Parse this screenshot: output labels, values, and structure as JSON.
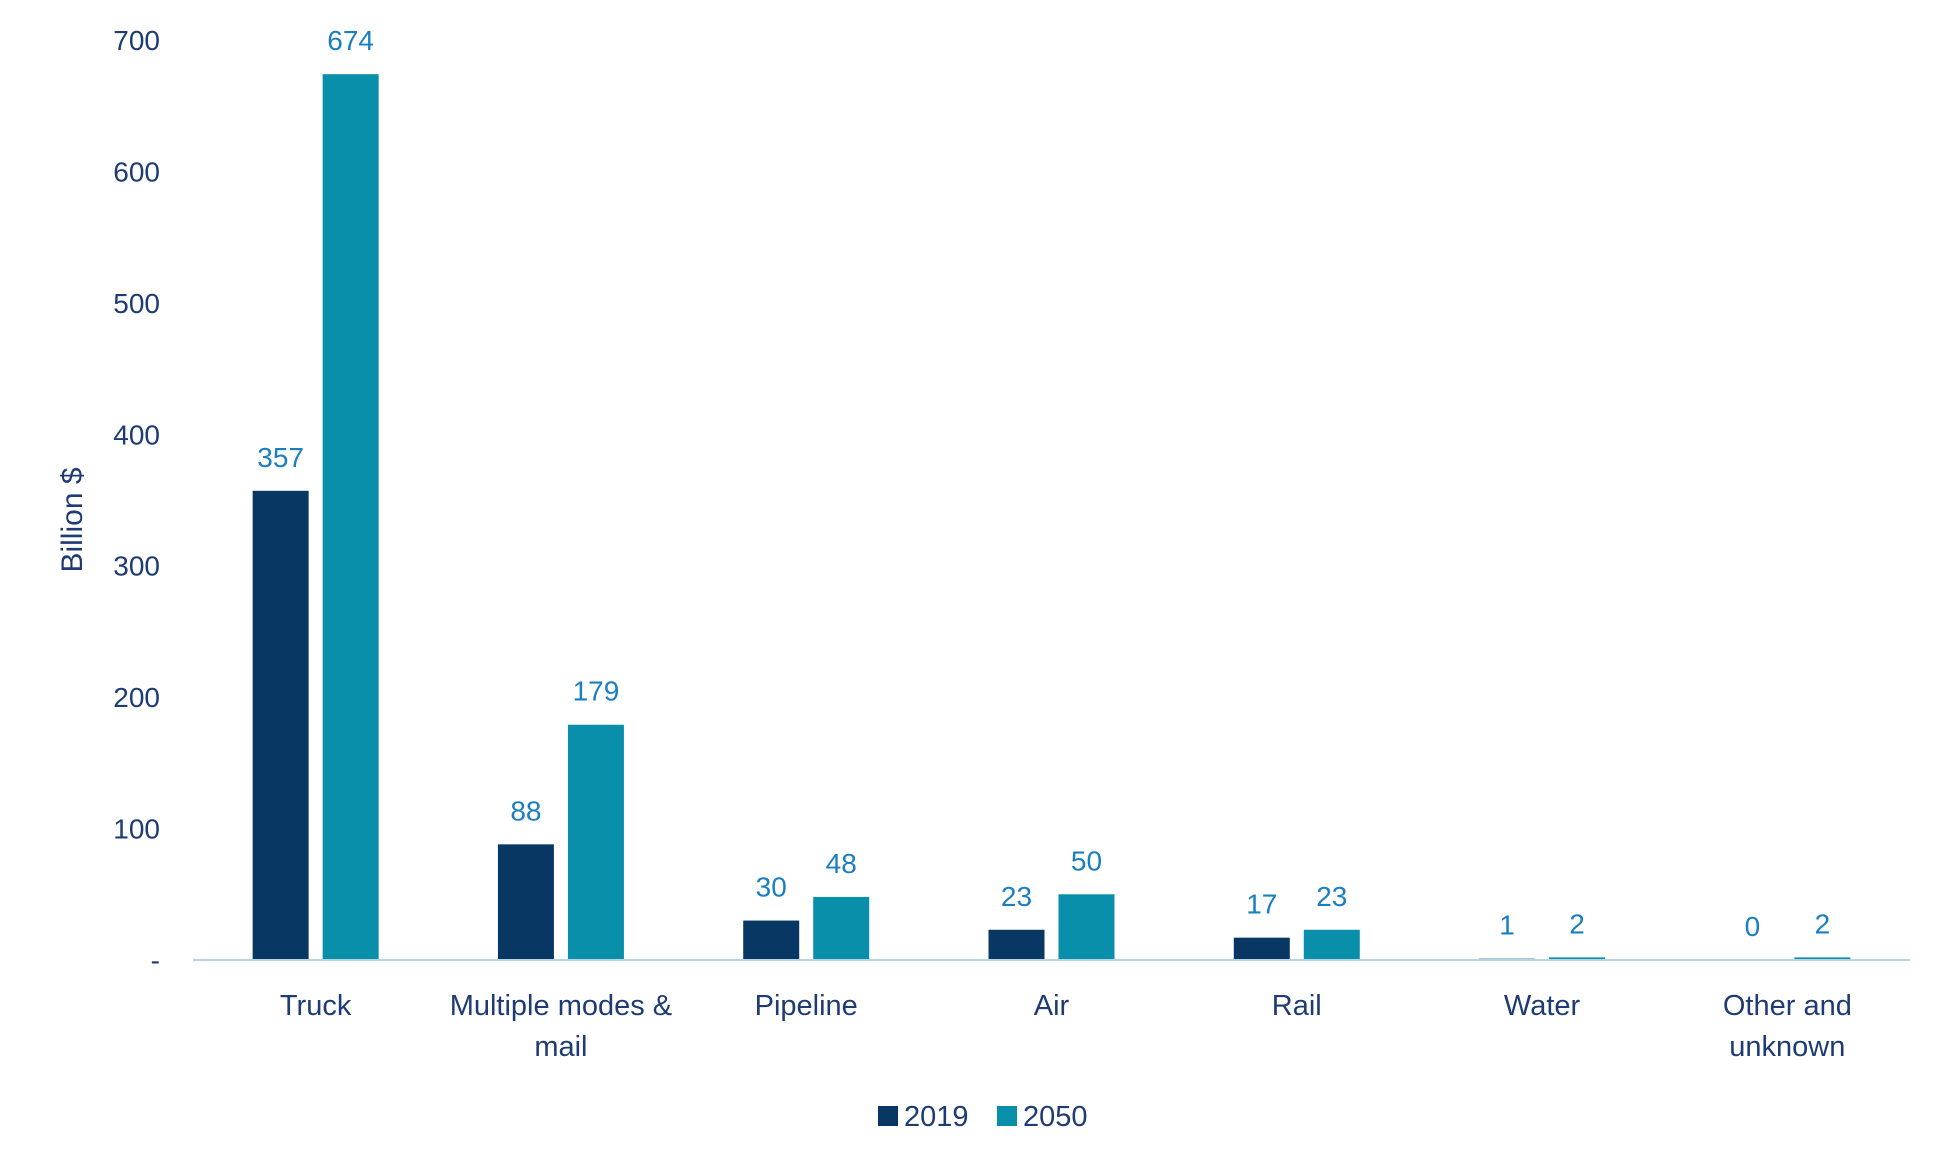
{
  "chart_data": {
    "type": "bar",
    "categories": [
      "Truck",
      "Multiple modes & mail",
      "Pipeline",
      "Air",
      "Rail",
      "Water",
      "Other and unknown"
    ],
    "category_lines": [
      [
        "Truck"
      ],
      [
        "Multiple modes &",
        "mail"
      ],
      [
        "Pipeline"
      ],
      [
        "Air"
      ],
      [
        "Rail"
      ],
      [
        "Water"
      ],
      [
        "Other and",
        "unknown"
      ]
    ],
    "series": [
      {
        "name": "2019",
        "values": [
          357,
          88,
          30,
          23,
          17,
          1,
          0
        ],
        "labels": [
          "357",
          "88",
          "30",
          "23",
          "17",
          "1",
          "0"
        ]
      },
      {
        "name": "2050",
        "values": [
          674,
          179,
          48,
          50,
          23,
          2,
          2
        ],
        "labels": [
          "674",
          "179",
          "48",
          "50",
          "23",
          "2",
          "2"
        ]
      }
    ],
    "colors": {
      "2019": "#083763",
      "2050": "#0a8faa"
    },
    "ylabel": "Billion $",
    "ylim": [
      0,
      700
    ],
    "yticks": [
      0,
      100,
      200,
      300,
      400,
      500,
      600,
      700
    ],
    "ytick_labels": [
      "-",
      "100",
      "200",
      "300",
      "400",
      "500",
      "600",
      "700"
    ],
    "legend": {
      "placement": "bottom",
      "entries": [
        "2019",
        "2050"
      ]
    },
    "grid": false
  }
}
